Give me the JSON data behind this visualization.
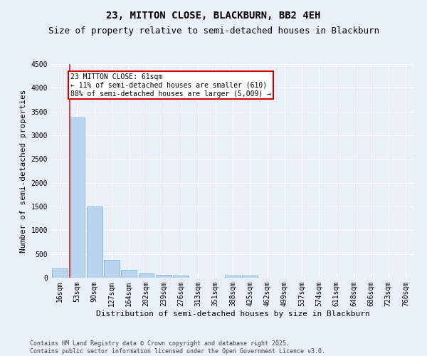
{
  "title": "23, MITTON CLOSE, BLACKBURN, BB2 4EH",
  "subtitle": "Size of property relative to semi-detached houses in Blackburn",
  "xlabel": "Distribution of semi-detached houses by size in Blackburn",
  "ylabel": "Number of semi-detached properties",
  "categories": [
    "16sqm",
    "53sqm",
    "90sqm",
    "127sqm",
    "164sqm",
    "202sqm",
    "239sqm",
    "276sqm",
    "313sqm",
    "351sqm",
    "388sqm",
    "425sqm",
    "462sqm",
    "499sqm",
    "537sqm",
    "574sqm",
    "611sqm",
    "648sqm",
    "686sqm",
    "723sqm",
    "760sqm"
  ],
  "values": [
    200,
    3380,
    1500,
    380,
    160,
    90,
    60,
    40,
    0,
    0,
    40,
    40,
    0,
    0,
    0,
    0,
    0,
    0,
    0,
    0,
    0
  ],
  "bar_color": "#b8d4ee",
  "bar_edge_color": "#7aaad0",
  "annotation_title": "23 MITTON CLOSE: 61sqm",
  "annotation_line1": "← 11% of semi-detached houses are smaller (610)",
  "annotation_line2": "88% of semi-detached houses are larger (5,009) →",
  "annotation_box_color": "#ffffff",
  "annotation_box_edge": "#cc0000",
  "red_line_color": "#cc2222",
  "ylim": [
    0,
    4500
  ],
  "yticks": [
    0,
    500,
    1000,
    1500,
    2000,
    2500,
    3000,
    3500,
    4000,
    4500
  ],
  "bg_color": "#eaf0f8",
  "grid_color": "#ffffff",
  "footer": "Contains HM Land Registry data © Crown copyright and database right 2025.\nContains public sector information licensed under the Open Government Licence v3.0.",
  "title_fontsize": 10,
  "subtitle_fontsize": 9,
  "axis_label_fontsize": 8,
  "tick_fontsize": 7,
  "annotation_fontsize": 7,
  "footer_fontsize": 6
}
